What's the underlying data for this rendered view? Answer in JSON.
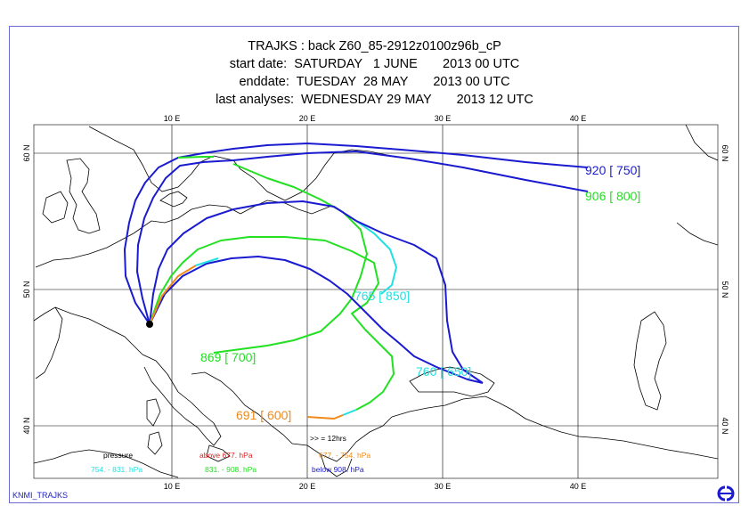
{
  "title": {
    "line1": "TRAJKS : back Z60_85-2912z0100z96b_cP",
    "line2": "start date:  SATURDAY   1 JUNE       2013 00 UTC",
    "line3": "enddate:  TUESDAY  28 MAY       2013 00 UTC",
    "line4": "last analyses:  WEDNESDAY 29 MAY       2013 12 UTC"
  },
  "axes": {
    "lon_ticks": [
      "10 E",
      "20 E",
      "30 E",
      "40 E"
    ],
    "lat_ticks_left": [
      "60 N",
      "50 N",
      "40 N"
    ],
    "lat_ticks_right": [
      "60 N",
      "50 N",
      "40 N"
    ]
  },
  "trajectory_labels": {
    "t1": "920 [ 750]",
    "t2": "906 [ 800]",
    "t3": "765 [ 850]",
    "t4": "869 [ 700]",
    "t5": "760 [ 650]",
    "t6": "691 [ 600]"
  },
  "legend": {
    "marker": ">>  = 12hrs",
    "pressure": "pressure",
    "above": "above   677.  hPa",
    "range1": "677.  -   754. hPa",
    "range2": "754.  -   831. hPa",
    "range3": "831.  -   908. hPa",
    "below": "below   908. hPa"
  },
  "colors": {
    "below_908": "#1a1ad0",
    "r831_908": "#22e022",
    "r754_831": "#22e0e0",
    "r677_754": "#f08a1a",
    "above_677": "#e02020"
  },
  "footer": {
    "left": "KNMI_TRAJKS",
    "logo": "ecmwf-logo-icon"
  }
}
